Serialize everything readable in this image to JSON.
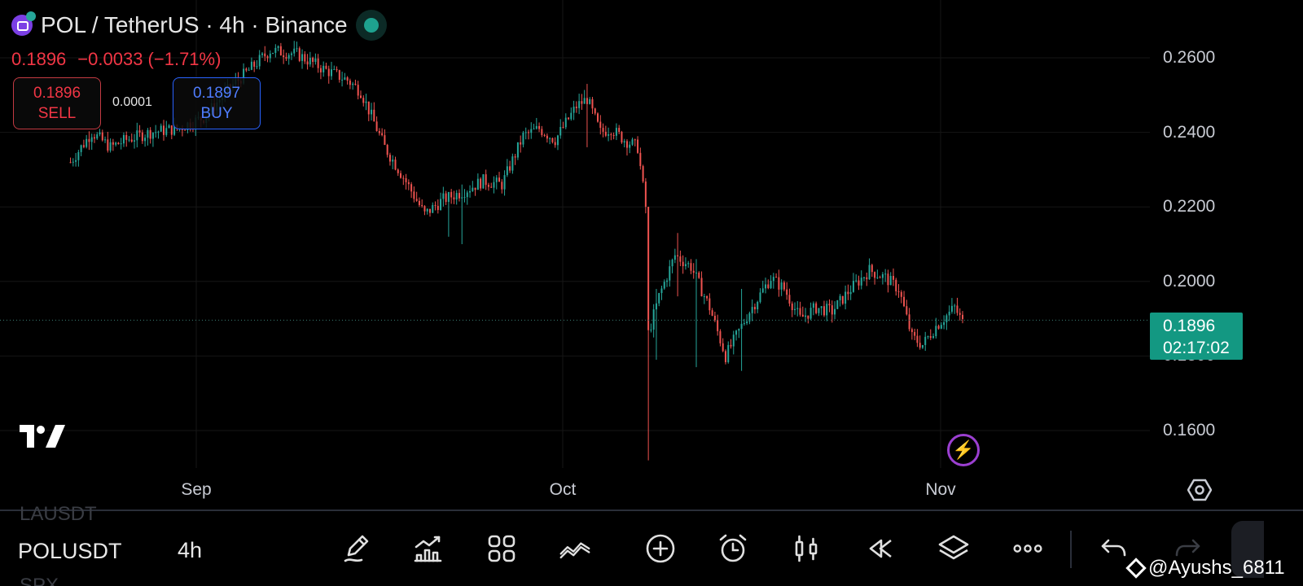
{
  "header": {
    "title": "POL / TetherUS · 4h · Binance",
    "last_price": "0.1896",
    "change": "−0.0033 (−1.71%)"
  },
  "trade": {
    "sell_price": "0.1896",
    "sell_label": "SELL",
    "spread": "0.0001",
    "buy_price": "0.1897",
    "buy_label": "BUY"
  },
  "price_tag": {
    "price": "0.1896",
    "countdown": "02:17:02"
  },
  "chart_data": {
    "type": "candlestick",
    "ylim": [
      0.15,
      0.266
    ],
    "y_ticks": [
      "0.2600",
      "0.2400",
      "0.2200",
      "0.2000",
      "0.1800",
      "0.1600"
    ],
    "y_tick_values": [
      0.26,
      0.24,
      0.22,
      0.2,
      0.18,
      0.16
    ],
    "x_ticks": [
      "Sep",
      "Oct",
      "Nov"
    ],
    "current_price": 0.1896,
    "colors": {
      "up": "#26a69a",
      "down": "#ef5350",
      "grid": "#161616",
      "price_line": "#3b7f76"
    },
    "anchors": [
      {
        "t": 0,
        "p": 0.232
      },
      {
        "t": 8,
        "p": 0.24
      },
      {
        "t": 15,
        "p": 0.236
      },
      {
        "t": 21,
        "p": 0.238
      },
      {
        "t": 30,
        "p": 0.24
      },
      {
        "t": 40,
        "p": 0.241
      },
      {
        "t": 50,
        "p": 0.244
      },
      {
        "t": 60,
        "p": 0.252
      },
      {
        "t": 75,
        "p": 0.262
      },
      {
        "t": 85,
        "p": 0.261
      },
      {
        "t": 95,
        "p": 0.257
      },
      {
        "t": 104,
        "p": 0.254
      },
      {
        "t": 109,
        "p": 0.251
      },
      {
        "t": 118,
        "p": 0.236
      },
      {
        "t": 125,
        "p": 0.228
      },
      {
        "t": 133,
        "p": 0.218
      },
      {
        "t": 140,
        "p": 0.222
      },
      {
        "t": 147,
        "p": 0.224
      },
      {
        "t": 155,
        "p": 0.227
      },
      {
        "t": 162,
        "p": 0.226
      },
      {
        "t": 170,
        "p": 0.239
      },
      {
        "t": 176,
        "p": 0.241
      },
      {
        "t": 182,
        "p": 0.238
      },
      {
        "t": 190,
        "p": 0.247
      },
      {
        "t": 194,
        "p": 0.249
      },
      {
        "t": 199,
        "p": 0.24
      },
      {
        "t": 203,
        "p": 0.241
      },
      {
        "t": 208,
        "p": 0.238
      },
      {
        "t": 213,
        "p": 0.236
      },
      {
        "t": 216,
        "p": 0.22
      },
      {
        "t": 217,
        "p": 0.186
      },
      {
        "t": 221,
        "p": 0.196
      },
      {
        "t": 227,
        "p": 0.207
      },
      {
        "t": 233,
        "p": 0.204
      },
      {
        "t": 240,
        "p": 0.193
      },
      {
        "t": 246,
        "p": 0.18
      },
      {
        "t": 255,
        "p": 0.192
      },
      {
        "t": 263,
        "p": 0.201
      },
      {
        "t": 268,
        "p": 0.198
      },
      {
        "t": 274,
        "p": 0.19
      },
      {
        "t": 280,
        "p": 0.193
      },
      {
        "t": 286,
        "p": 0.192
      },
      {
        "t": 293,
        "p": 0.198
      },
      {
        "t": 300,
        "p": 0.203
      },
      {
        "t": 306,
        "p": 0.201
      },
      {
        "t": 311,
        "p": 0.198
      },
      {
        "t": 316,
        "p": 0.185
      },
      {
        "t": 320,
        "p": 0.183
      },
      {
        "t": 325,
        "p": 0.188
      },
      {
        "t": 332,
        "p": 0.193
      },
      {
        "t": 335,
        "p": 0.189
      }
    ],
    "wicks": [
      {
        "t": 217,
        "low": 0.152,
        "high": 0.218
      },
      {
        "t": 220,
        "low": 0.179,
        "high": 0.198
      },
      {
        "t": 235,
        "low": 0.177,
        "high": 0.206
      },
      {
        "t": 252,
        "low": 0.176,
        "high": 0.198
      },
      {
        "t": 228,
        "low": 0.196,
        "high": 0.213
      },
      {
        "t": 194,
        "low": 0.236,
        "high": 0.253
      },
      {
        "t": 147,
        "low": 0.21,
        "high": 0.226
      },
      {
        "t": 142,
        "low": 0.212,
        "high": 0.224
      }
    ]
  },
  "watermarks": {
    "bolt_icon": "bolt-icon",
    "tv_logo": "tradingview-logo"
  },
  "bottom_bar": {
    "ghost_prev": "LAUSDT",
    "symbol": "POLUSDT",
    "ghost_next": "SPX",
    "timeframe": "4h",
    "tools": [
      "pencil-icon",
      "indicators-icon",
      "apps-grid-icon",
      "trend-line-icon",
      "add-circle-icon",
      "alarm-icon",
      "candlestick-icon",
      "replay-icon",
      "layers-icon",
      "more-icon",
      "undo-icon",
      "redo-icon"
    ]
  },
  "watermark_text": "@Ayushs_6811"
}
